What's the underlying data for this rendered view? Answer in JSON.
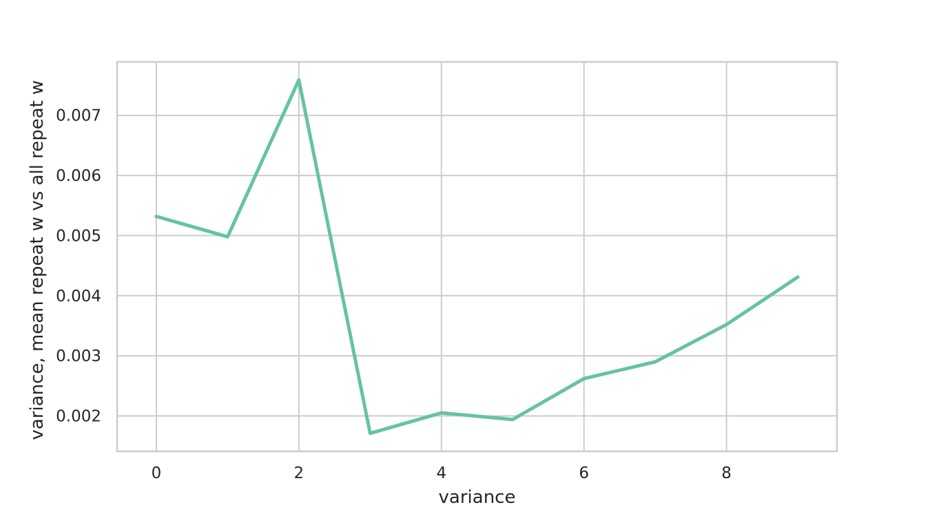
{
  "chart_data": {
    "type": "line",
    "title": "",
    "xlabel": "variance",
    "ylabel": "variance, mean repeat w vs all repeat w",
    "x": [
      0,
      1,
      2,
      3,
      4,
      5,
      6,
      7,
      8,
      9
    ],
    "series": [
      {
        "values": [
          0.00532,
          0.00498,
          0.00759,
          0.00171,
          0.00205,
          0.00194,
          0.00262,
          0.0029,
          0.00352,
          0.00431
        ],
        "color": "#66c2a5"
      }
    ],
    "xlim": [
      -0.55,
      9.55
    ],
    "ylim": [
      0.00141,
      0.00789
    ],
    "xticks": [
      0,
      2,
      4,
      6,
      8
    ],
    "xtick_labels": [
      "0",
      "2",
      "4",
      "6",
      "8"
    ],
    "yticks": [
      0.002,
      0.003,
      0.004,
      0.005,
      0.006,
      0.007
    ],
    "ytick_labels": [
      "0.002",
      "0.003",
      "0.004",
      "0.005",
      "0.006",
      "0.007"
    ],
    "grid": true,
    "legend": "none"
  }
}
